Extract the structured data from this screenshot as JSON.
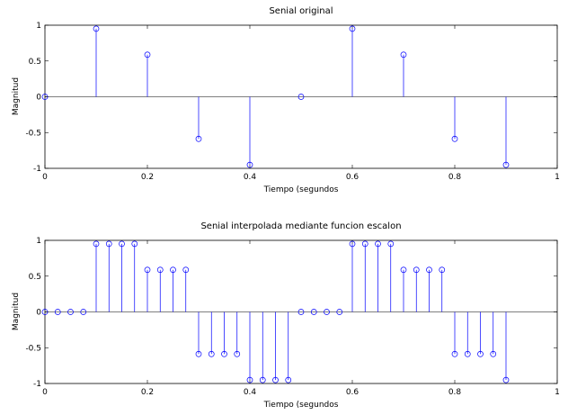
{
  "colors": {
    "stem": "#0000ff",
    "axis": "#000000",
    "zero_line": "#000000"
  },
  "chart_data": [
    {
      "type": "stem",
      "title": "Senial original",
      "xlabel": "Tiempo (segundos",
      "ylabel": "Magnitud",
      "xlim": [
        0,
        1
      ],
      "ylim": [
        -1,
        1
      ],
      "xticks": [
        "0",
        "0.2",
        "0.4",
        "0.6",
        "0.8",
        "1"
      ],
      "yticks": [
        "1",
        "0.5",
        "0",
        "-0.5",
        "-1"
      ],
      "grid": false,
      "x": [
        0,
        0.1,
        0.2,
        0.3,
        0.4,
        0.5,
        0.6,
        0.7,
        0.8,
        0.9
      ],
      "values": [
        0,
        0.951,
        0.588,
        -0.588,
        -0.951,
        0,
        0.951,
        0.588,
        -0.588,
        -0.951
      ]
    },
    {
      "type": "stem",
      "title": "Senial interpolada mediante funcion escalon",
      "xlabel": "Tiempo (segundos",
      "ylabel": "Magnitud",
      "xlim": [
        0,
        1
      ],
      "ylim": [
        -1,
        1
      ],
      "xticks": [
        "0",
        "0.2",
        "0.4",
        "0.6",
        "0.8",
        "1"
      ],
      "yticks": [
        "1",
        "0.5",
        "0",
        "-0.5",
        "-1"
      ],
      "grid": false,
      "x": [
        0,
        0.025,
        0.05,
        0.075,
        0.1,
        0.125,
        0.15,
        0.175,
        0.2,
        0.225,
        0.25,
        0.275,
        0.3,
        0.325,
        0.35,
        0.375,
        0.4,
        0.425,
        0.45,
        0.475,
        0.5,
        0.525,
        0.55,
        0.575,
        0.6,
        0.625,
        0.65,
        0.675,
        0.7,
        0.725,
        0.75,
        0.775,
        0.8,
        0.825,
        0.85,
        0.875,
        0.9
      ],
      "values": [
        0,
        0,
        0,
        0,
        0.951,
        0.951,
        0.951,
        0.951,
        0.588,
        0.588,
        0.588,
        0.588,
        -0.588,
        -0.588,
        -0.588,
        -0.588,
        -0.951,
        -0.951,
        -0.951,
        -0.951,
        0,
        0,
        0,
        0,
        0.951,
        0.951,
        0.951,
        0.951,
        0.588,
        0.588,
        0.588,
        0.588,
        -0.588,
        -0.588,
        -0.588,
        -0.588,
        -0.951
      ]
    }
  ]
}
